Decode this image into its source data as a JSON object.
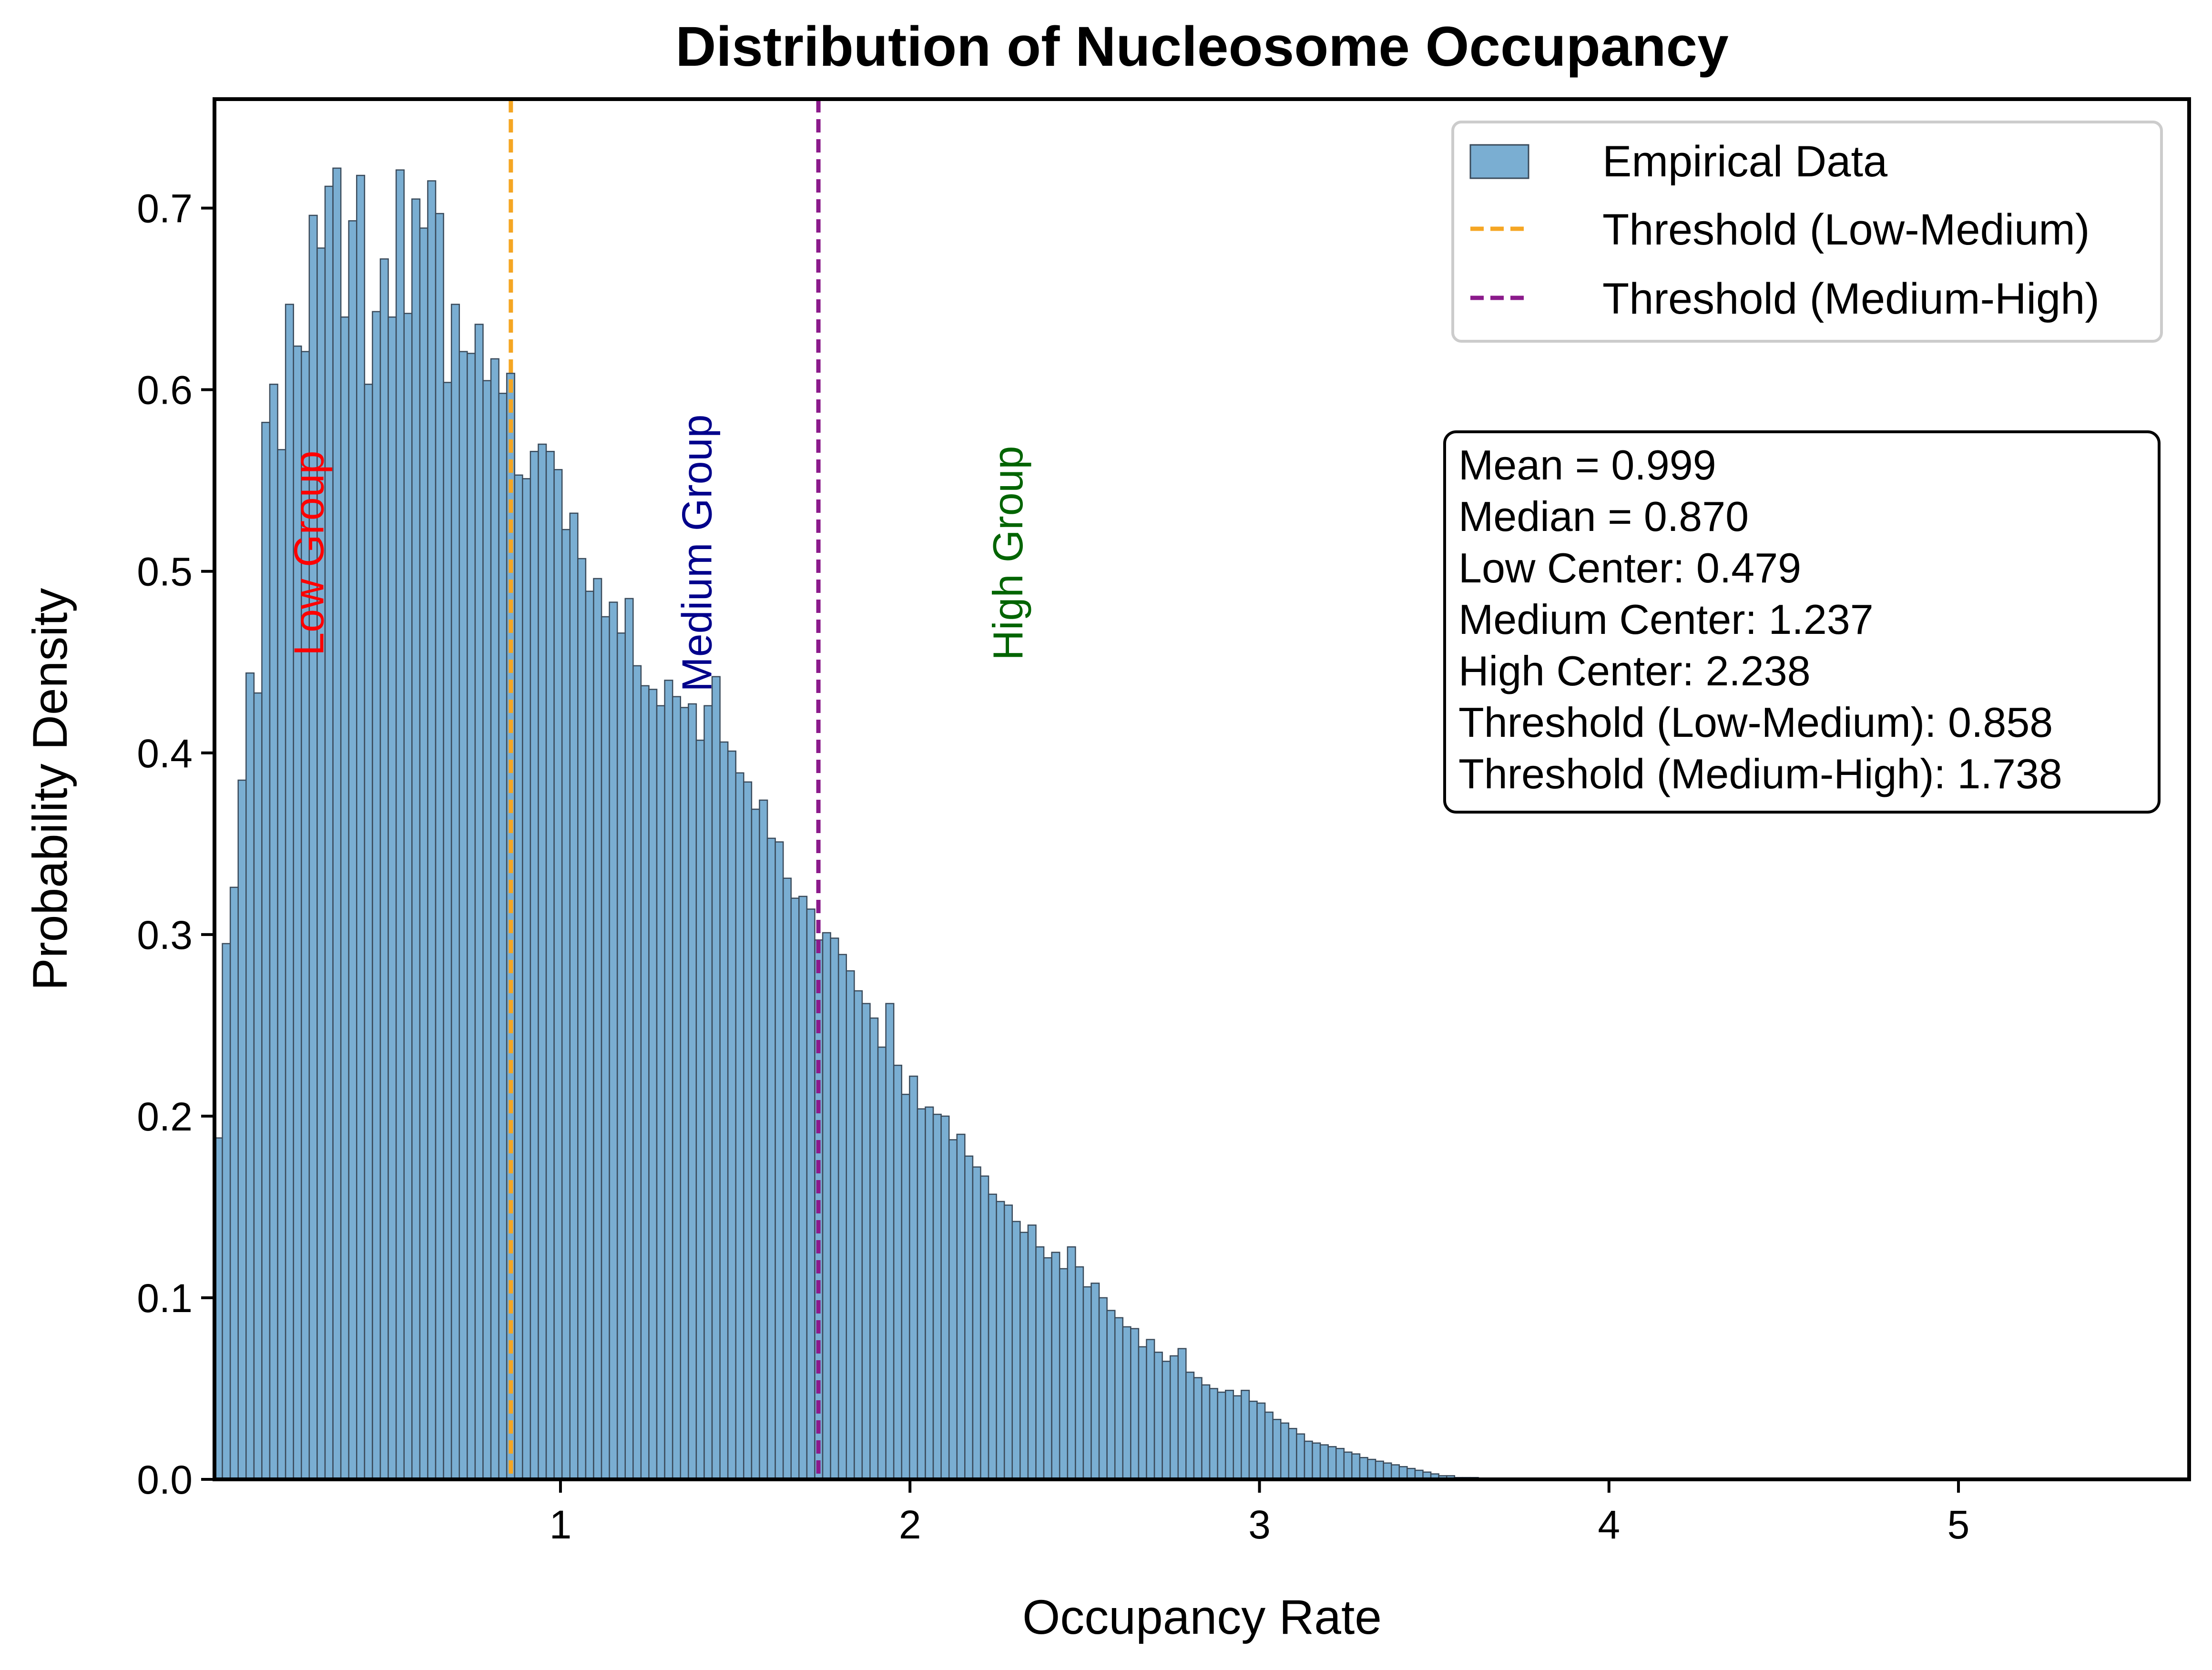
{
  "chart_data": {
    "type": "histogram",
    "title": "Distribution of Nucleosome Occupancy",
    "xlabel": "Occupancy Rate",
    "ylabel": "Probability Density",
    "xlim": [
      0.01,
      5.66
    ],
    "ylim": [
      0,
      0.76
    ],
    "x_ticks": [
      1,
      2,
      3,
      4,
      5
    ],
    "x_tick_labels": [
      "1",
      "2",
      "3",
      "4",
      "5"
    ],
    "y_ticks": [
      0.0,
      0.1,
      0.2,
      0.3,
      0.4,
      0.5,
      0.6,
      0.7
    ],
    "y_tick_labels": [
      "0.0",
      "0.1",
      "0.2",
      "0.3",
      "0.4",
      "0.5",
      "0.6",
      "0.7"
    ],
    "grid": false,
    "legend_position": "top-right",
    "bin_start": 0.01,
    "bin_width": 0.0226,
    "density": [
      0.188,
      0.295,
      0.326,
      0.385,
      0.444,
      0.433,
      0.582,
      0.603,
      0.567,
      0.647,
      0.624,
      0.621,
      0.696,
      0.678,
      0.712,
      0.722,
      0.64,
      0.693,
      0.718,
      0.603,
      0.643,
      0.672,
      0.64,
      0.721,
      0.642,
      0.705,
      0.689,
      0.715,
      0.697,
      0.604,
      0.647,
      0.621,
      0.62,
      0.636,
      0.605,
      0.617,
      0.598,
      0.609,
      0.553,
      0.551,
      0.566,
      0.57,
      0.566,
      0.556,
      0.523,
      0.532,
      0.507,
      0.489,
      0.496,
      0.475,
      0.483,
      0.466,
      0.485,
      0.448,
      0.437,
      0.435,
      0.426,
      0.44,
      0.431,
      0.425,
      0.427,
      0.407,
      0.426,
      0.442,
      0.406,
      0.401,
      0.389,
      0.384,
      0.369,
      0.374,
      0.353,
      0.351,
      0.331,
      0.32,
      0.321,
      0.314,
      0.297,
      0.301,
      0.298,
      0.289,
      0.28,
      0.269,
      0.262,
      0.254,
      0.238,
      0.262,
      0.228,
      0.212,
      0.222,
      0.204,
      0.205,
      0.201,
      0.2,
      0.187,
      0.19,
      0.178,
      0.172,
      0.167,
      0.157,
      0.153,
      0.151,
      0.142,
      0.136,
      0.14,
      0.128,
      0.122,
      0.125,
      0.116,
      0.128,
      0.117,
      0.106,
      0.108,
      0.1,
      0.093,
      0.089,
      0.084,
      0.083,
      0.073,
      0.077,
      0.07,
      0.065,
      0.068,
      0.072,
      0.059,
      0.056,
      0.052,
      0.05,
      0.048,
      0.049,
      0.046,
      0.049,
      0.043,
      0.042,
      0.037,
      0.033,
      0.031,
      0.028,
      0.025,
      0.021,
      0.02,
      0.019,
      0.018,
      0.017,
      0.015,
      0.014,
      0.012,
      0.011,
      0.01,
      0.009,
      0.008,
      0.007,
      0.006,
      0.005,
      0.004,
      0.003,
      0.002,
      0.002,
      0.001,
      0.001,
      0.001,
      0.0,
      0.0
    ],
    "thresholds": [
      {
        "name": "Threshold (Low-Medium)",
        "x": 0.858,
        "color": "#f5a623"
      },
      {
        "name": "Threshold (Medium-High)",
        "x": 1.738,
        "color": "#8b1a8b"
      }
    ],
    "group_labels": [
      {
        "text": "Low Group",
        "x": 0.29,
        "y": 0.51,
        "color": "#ff0000"
      },
      {
        "text": "Medium Group",
        "x": 1.4,
        "y": 0.51,
        "color": "#00008b"
      },
      {
        "text": "High Group",
        "x": 2.29,
        "y": 0.51,
        "color": "#006400"
      }
    ],
    "legend": [
      {
        "label": "Empirical Data",
        "kind": "patch",
        "color": "#7aaed2"
      },
      {
        "label": "Threshold (Low-Medium)",
        "kind": "dashed",
        "color": "#f5a623"
      },
      {
        "label": "Threshold (Medium-High)",
        "kind": "dashed",
        "color": "#8b1a8b"
      }
    ],
    "stats_box": [
      "Mean = 0.999",
      "Median = 0.870",
      "Low Center: 0.479",
      "Medium Center: 1.237",
      "High Center: 2.238",
      "Threshold (Low-Medium): 0.858",
      "Threshold (Medium-High): 1.738"
    ],
    "colors": {
      "bar_fill": "#7aaed2",
      "bar_edge": "#3a4a5a"
    }
  }
}
